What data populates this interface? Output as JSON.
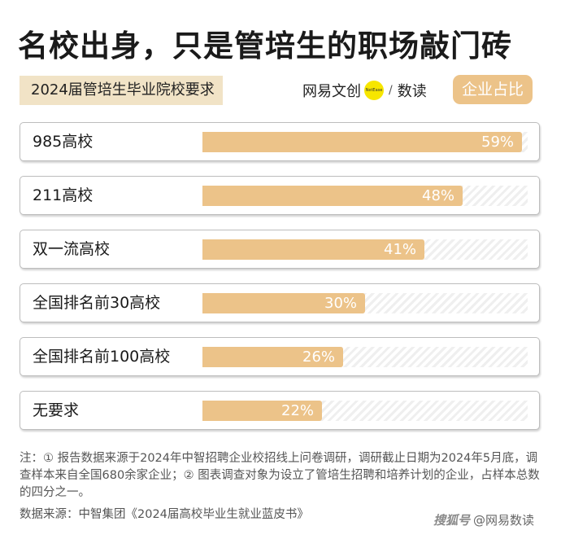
{
  "header": {
    "title": "名校出身，只是管培生的职场敲门砖",
    "subtitle": "2024届管培生毕业院校要求",
    "legend_label": "企业占比"
  },
  "brand": {
    "name": "网易文创",
    "badge_text": "NetEase",
    "slash": "/",
    "sub": "数读"
  },
  "colors": {
    "accent": "#ecc389",
    "subtitle_bg": "#f1e3c6",
    "brand_dot": "#f7e600"
  },
  "chart_data": {
    "type": "bar",
    "orientation": "horizontal",
    "categories": [
      "985高校",
      "211高校",
      "双一流高校",
      "全国排名前30高校",
      "全国排名前100高校",
      "无要求"
    ],
    "values": [
      59,
      48,
      41,
      30,
      26,
      22
    ],
    "value_labels": [
      "59%",
      "48%",
      "41%",
      "30%",
      "26%",
      "22%"
    ],
    "unit": "%",
    "xlim": [
      0,
      60
    ]
  },
  "footer": {
    "note": "注：① 报告数据来源于2024年中智招聘企业校招线上问卷调研，调研截止日期为2024年5月底，调查样本来自全国680余家企业；② 图表调查对象为设立了管培生招聘和培养计划的企业，占样本总数的四分之一。",
    "source": "数据来源：中智集团《2024届高校毕业生就业蓝皮书》",
    "watermark_logo": "搜狐号",
    "watermark": "@网易数读"
  }
}
